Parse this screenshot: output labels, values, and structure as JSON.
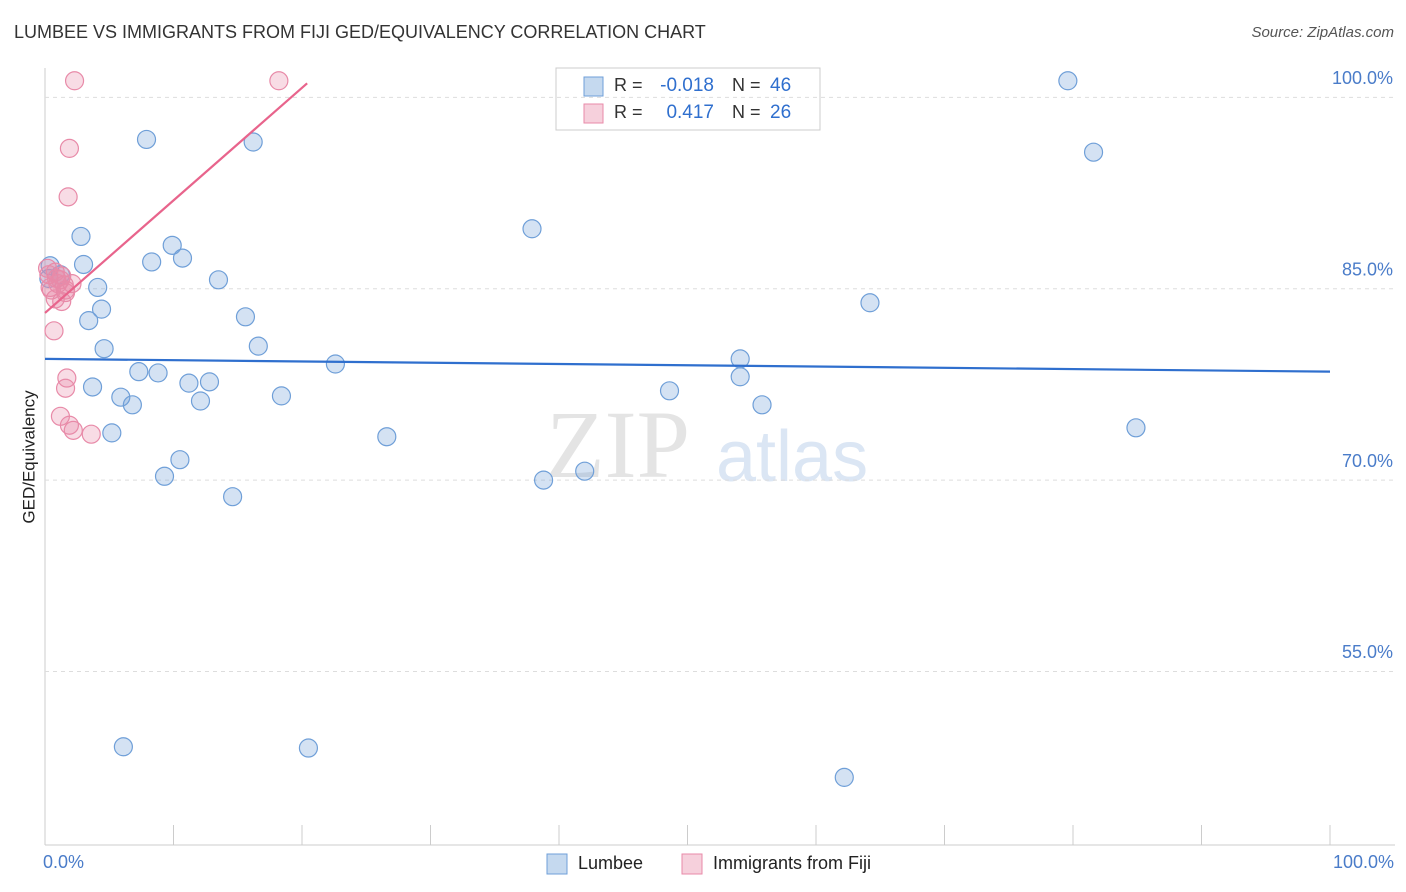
{
  "chart_data": {
    "type": "scatter",
    "title": "LUMBEE VS IMMIGRANTS FROM FIJI GED/EQUIVALENCY CORRELATION CHART",
    "source": "Source: ZipAtlas.com",
    "y_label": "GED/Equivalency",
    "watermark": [
      "ZIP",
      "atlas"
    ],
    "stat_labels": [
      "R =",
      "N ="
    ],
    "xlim": [
      0,
      100
    ],
    "ylim": [
      41.4,
      102.3
    ],
    "xticks": [
      {
        "value": 0,
        "label": "0.0%"
      },
      {
        "value": 100,
        "label": "100.0%"
      }
    ],
    "yticks": [
      {
        "value": 55,
        "label": "55.0%"
      },
      {
        "value": 70,
        "label": "70.0%"
      },
      {
        "value": 85,
        "label": "85.0%"
      },
      {
        "value": 100,
        "label": "100.0%"
      }
    ],
    "grid": true,
    "series": [
      {
        "name": "Lumbee",
        "color": "#6f9fd8",
        "line_color": "#2f6fce",
        "r": -0.018,
        "n": 46,
        "x": [
          7.9,
          16.2,
          2.8,
          9.9,
          8.3,
          10.7,
          13.5,
          4.4,
          3.4,
          15.6,
          4.6,
          16.6,
          7.3,
          8.8,
          3.7,
          11.2,
          12.8,
          5.9,
          6.8,
          12.1,
          18.4,
          22.6,
          5.2,
          10.5,
          9.3,
          14.6,
          26.6,
          37.9,
          38.8,
          42.0,
          48.6,
          54.1,
          54.1,
          55.8,
          64.2,
          79.6,
          81.6,
          84.9,
          6.1,
          20.5,
          62.2,
          0.4,
          3.0,
          4.1,
          1.2,
          0.3
        ],
        "values": [
          96.7,
          96.5,
          89.1,
          88.4,
          87.1,
          87.4,
          85.7,
          83.4,
          82.5,
          82.8,
          80.3,
          80.5,
          78.5,
          78.4,
          77.3,
          77.6,
          77.7,
          76.5,
          75.9,
          76.2,
          76.6,
          79.1,
          73.7,
          71.6,
          70.3,
          68.7,
          73.4,
          89.7,
          70.0,
          70.7,
          77.0,
          79.5,
          78.1,
          75.9,
          83.9,
          101.3,
          95.7,
          74.1,
          49.1,
          49.0,
          46.7,
          86.8,
          86.9,
          85.1,
          86.1,
          85.8
        ],
        "trend_x": [
          0,
          100
        ],
        "trend_y": [
          79.5,
          78.5
        ]
      },
      {
        "name": "Immigrants from Fiji",
        "color": "#e88aa8",
        "line_color": "#e8648c",
        "r": 0.417,
        "n": 26,
        "x": [
          2.3,
          18.2,
          1.9,
          1.8,
          0.2,
          0.8,
          1.3,
          1.0,
          0.4,
          1.6,
          0.8,
          1.3,
          0.7,
          1.7,
          1.6,
          1.2,
          1.9,
          2.2,
          3.6,
          1.2,
          0.5,
          1.5,
          0.9,
          1.6,
          0.3,
          2.1
        ],
        "values": [
          101.3,
          101.3,
          96.0,
          92.2,
          86.6,
          86.3,
          86.0,
          85.4,
          85.1,
          84.7,
          84.2,
          84.0,
          81.7,
          78.0,
          77.2,
          75.0,
          74.3,
          73.9,
          73.6,
          85.7,
          84.9,
          85.3,
          85.8,
          84.9,
          86.1,
          85.4
        ],
        "trend_x": [
          0,
          20.4
        ],
        "trend_y": [
          83.1,
          101.1
        ]
      }
    ]
  }
}
